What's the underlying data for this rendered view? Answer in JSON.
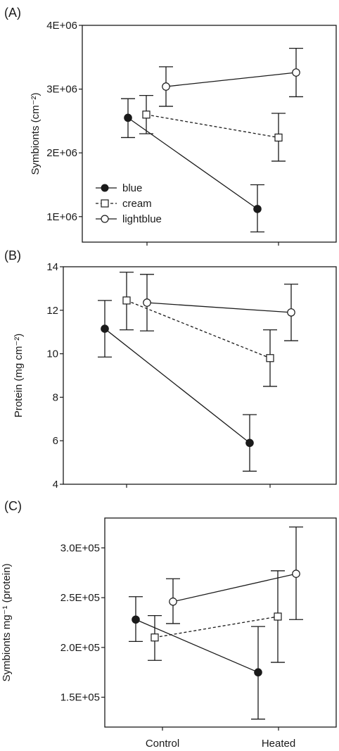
{
  "chart_data": [
    {
      "type": "line",
      "panel_label": "(A)",
      "ylabel": "Symbionts (cm⁻²)",
      "ylim": [
        600000,
        4000000
      ],
      "yticks": [
        1000000,
        2000000,
        3000000,
        4000000
      ],
      "ytick_labels": [
        "1E+06",
        "2E+06",
        "3E+06",
        "4E+06"
      ],
      "categories": [
        "Control",
        "Heated"
      ],
      "legend": "lower-left",
      "series": [
        {
          "name": "blue",
          "marker": "filled-circle",
          "line": "solid",
          "values": [
            2550000,
            1120000
          ],
          "err_low": [
            2240000,
            760000
          ],
          "err_high": [
            2850000,
            1500000
          ]
        },
        {
          "name": "cream",
          "marker": "open-square",
          "line": "dashed",
          "values": [
            2600000,
            2240000
          ],
          "err_low": [
            2300000,
            1870000
          ],
          "err_high": [
            2900000,
            2620000
          ]
        },
        {
          "name": "lightblue",
          "marker": "open-circle",
          "line": "solid",
          "values": [
            3040000,
            3260000
          ],
          "err_low": [
            2730000,
            2880000
          ],
          "err_high": [
            3350000,
            3640000
          ]
        }
      ]
    },
    {
      "type": "line",
      "panel_label": "(B)",
      "ylabel": "Protein (mg cm⁻²)",
      "ylim": [
        4,
        14
      ],
      "yticks": [
        4,
        6,
        8,
        10,
        12,
        14
      ],
      "ytick_labels": [
        "4",
        "6",
        "8",
        "10",
        "12",
        "14"
      ],
      "categories": [
        "Control",
        "Heated"
      ],
      "series": [
        {
          "name": "blue",
          "marker": "filled-circle",
          "line": "solid",
          "values": [
            11.15,
            5.9
          ],
          "err_low": [
            9.85,
            4.6
          ],
          "err_high": [
            12.45,
            7.2
          ]
        },
        {
          "name": "cream",
          "marker": "open-square",
          "line": "dashed",
          "values": [
            12.45,
            9.8
          ],
          "err_low": [
            11.1,
            8.5
          ],
          "err_high": [
            13.75,
            11.1
          ]
        },
        {
          "name": "lightblue",
          "marker": "open-circle",
          "line": "solid",
          "values": [
            12.35,
            11.9
          ],
          "err_low": [
            11.05,
            10.6
          ],
          "err_high": [
            13.65,
            13.2
          ]
        }
      ]
    },
    {
      "type": "line",
      "panel_label": "(C)",
      "ylabel": "Symbionts mg⁻¹ (protein)",
      "ylim": [
        120000,
        330000
      ],
      "yticks": [
        150000,
        200000,
        250000,
        300000
      ],
      "ytick_labels": [
        "1.5E+05",
        "2.0E+05",
        "2.5E+05",
        "3.0E+05"
      ],
      "categories": [
        "Control",
        "Heated"
      ],
      "series": [
        {
          "name": "blue",
          "marker": "filled-circle",
          "line": "solid",
          "values": [
            228000,
            175000
          ],
          "err_low": [
            206000,
            128000
          ],
          "err_high": [
            251000,
            221000
          ]
        },
        {
          "name": "cream",
          "marker": "open-square",
          "line": "dashed",
          "values": [
            210000,
            231000
          ],
          "err_low": [
            187000,
            185000
          ],
          "err_high": [
            232000,
            277000
          ]
        },
        {
          "name": "lightblue",
          "marker": "open-circle",
          "line": "solid",
          "values": [
            246000,
            274000
          ],
          "err_low": [
            224000,
            228000
          ],
          "err_high": [
            269000,
            321000
          ]
        }
      ]
    }
  ]
}
